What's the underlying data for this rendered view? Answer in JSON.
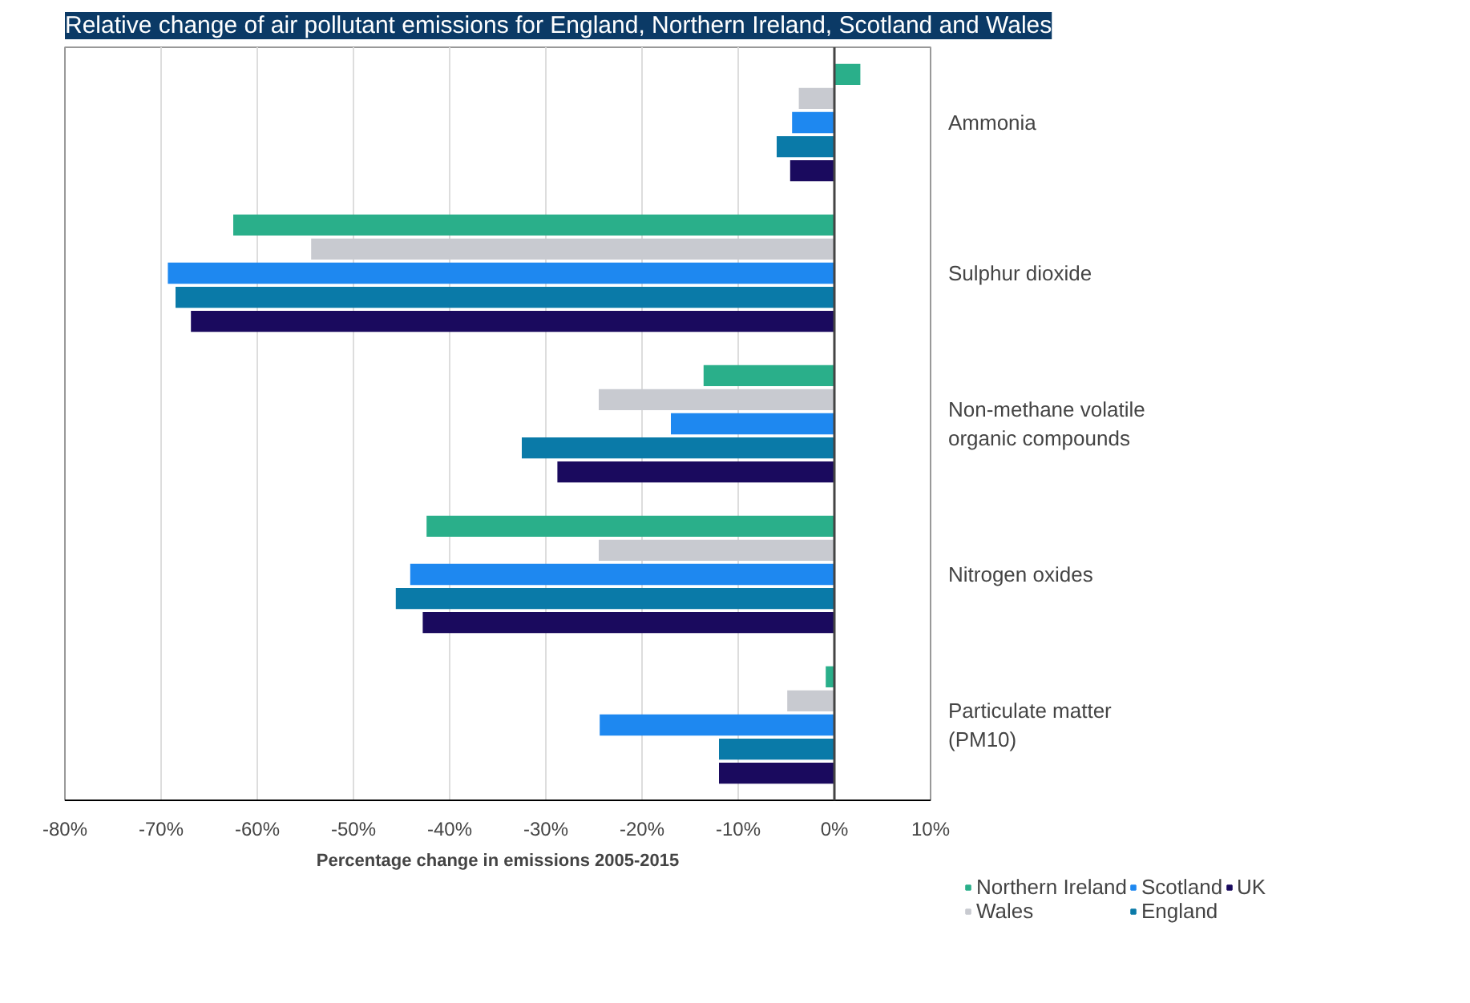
{
  "chart_data": {
    "type": "bar",
    "orientation": "horizontal",
    "title": "Relative change of air pollutant emissions for England, Northern Ireland, Scotland and Wales",
    "xlabel": "Percentage change in emissions 2005-2015",
    "categories": [
      "Ammonia",
      "Sulphur dioxide",
      "Non-methane volatile organic compounds",
      "Nitrogen oxides",
      "Particulate matter (PM10)"
    ],
    "series": [
      {
        "name": "Northern Ireland",
        "color": "#2aaf8a",
        "values": [
          2.7,
          -62.5,
          -13.6,
          -42.4,
          -0.9
        ]
      },
      {
        "name": "Wales",
        "color": "#c8cad0",
        "values": [
          -3.7,
          -54.4,
          -24.5,
          -24.5,
          -4.9
        ]
      },
      {
        "name": "Scotland",
        "color": "#1e88f0",
        "values": [
          -4.4,
          -69.3,
          -17,
          -44.1,
          -24.4
        ]
      },
      {
        "name": "England",
        "color": "#0a7aa8",
        "values": [
          -6,
          -68.5,
          -32.5,
          -45.6,
          -12
        ]
      },
      {
        "name": "UK",
        "color": "#1a0a5e",
        "values": [
          -4.6,
          -66.9,
          -28.8,
          -42.8,
          -12
        ]
      }
    ],
    "xlim": [
      -80,
      10
    ],
    "xticks": [
      {
        "value": -80,
        "label": "-80%"
      },
      {
        "value": -70,
        "label": "-70%"
      },
      {
        "value": -60,
        "label": "-60%"
      },
      {
        "value": -50,
        "label": "-50%"
      },
      {
        "value": -40,
        "label": "-40%"
      },
      {
        "value": -30,
        "label": "-30%"
      },
      {
        "value": -20,
        "label": "-20%"
      },
      {
        "value": -10,
        "label": "-10%"
      },
      {
        "value": 0,
        "label": "0%"
      },
      {
        "value": 10,
        "label": "10%"
      }
    ],
    "grid": "x",
    "legend": "bottom right"
  }
}
